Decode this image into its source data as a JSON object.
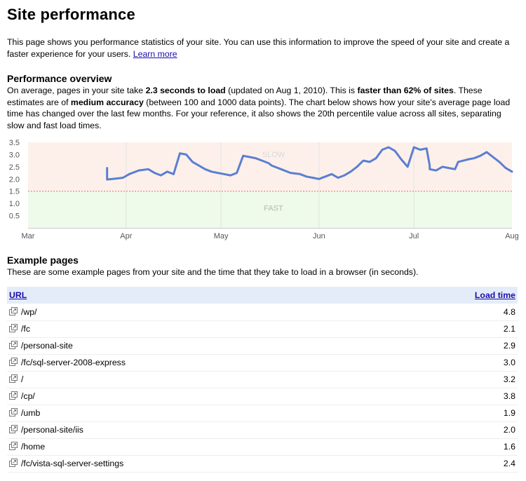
{
  "page_title": "Site performance",
  "intro": {
    "text": "This page shows you performance statistics of your site. You can use this information to improve the speed of your site and create a faster experience for your users. ",
    "learn_more": "Learn more"
  },
  "overview": {
    "heading": "Performance overview",
    "t1": "On average, pages in your site take ",
    "t2": "2.3 seconds to load",
    "t3": " (updated on Aug 1, 2010). This is ",
    "t4": "faster than 62% of sites",
    "t5": ". These estimates are of ",
    "t6": "medium accuracy",
    "t7": " (between 100 and 1000 data points). The chart below shows how your site's average page load time has changed over the last few months. For your reference, it also shows the 20th percentile value across all sites, separating slow and fast load times."
  },
  "colors": {
    "line": "#5b7fd0",
    "slow_band": "#fdf0eb",
    "fast_band": "#eefaea",
    "threshold": "#e07060"
  },
  "chart_data": {
    "type": "line",
    "ylim": [
      0,
      3.5
    ],
    "yticks": [
      0.5,
      1.0,
      1.5,
      2.0,
      2.5,
      3.0,
      3.5
    ],
    "ytick_labels": [
      "0.5",
      "1.0",
      "1.5",
      "2.0",
      "2.5",
      "3.0",
      "3.5"
    ],
    "xticks": [
      "Mar",
      "Apr",
      "May",
      "Jun",
      "Jul",
      "Aug"
    ],
    "threshold": 1.5,
    "band_labels": {
      "slow": "SLOW",
      "fast": "FAST"
    },
    "x_start": "2010-03-01",
    "series": [
      {
        "x": [
          "2010-03-26",
          "2010-03-26",
          "2010-03-29",
          "2010-03-31",
          "2010-04-02",
          "2010-04-05",
          "2010-04-08",
          "2010-04-10",
          "2010-04-12",
          "2010-04-14",
          "2010-04-16",
          "2010-04-18",
          "2010-04-20",
          "2010-04-22",
          "2010-04-24",
          "2010-04-26",
          "2010-04-28",
          "2010-04-30",
          "2010-05-02",
          "2010-05-04",
          "2010-05-06",
          "2010-05-08",
          "2010-05-10",
          "2010-05-12",
          "2010-05-14",
          "2010-05-16",
          "2010-05-17",
          "2010-05-20",
          "2010-05-23",
          "2010-05-26",
          "2010-05-28",
          "2010-05-30",
          "2010-06-01",
          "2010-06-03",
          "2010-06-05",
          "2010-06-07",
          "2010-06-09",
          "2010-06-11",
          "2010-06-13",
          "2010-06-15",
          "2010-06-17",
          "2010-06-19",
          "2010-06-21",
          "2010-06-23",
          "2010-06-25",
          "2010-06-27",
          "2010-06-29",
          "2010-07-01",
          "2010-07-03",
          "2010-07-05",
          "2010-07-06",
          "2010-07-06",
          "2010-07-08",
          "2010-07-10",
          "2010-07-12",
          "2010-07-14",
          "2010-07-15",
          "2010-07-18",
          "2010-07-20",
          "2010-07-22",
          "2010-07-24",
          "2010-07-26",
          "2010-07-28",
          "2010-07-30",
          "2010-08-01"
        ],
        "y": [
          2.45,
          1.98,
          2.02,
          2.05,
          2.2,
          2.35,
          2.4,
          2.25,
          2.15,
          2.3,
          2.2,
          3.05,
          3.0,
          2.7,
          2.55,
          2.4,
          2.3,
          2.25,
          2.2,
          2.15,
          2.25,
          2.95,
          2.9,
          2.85,
          2.75,
          2.65,
          2.55,
          2.4,
          2.25,
          2.2,
          2.1,
          2.05,
          2.0,
          2.1,
          2.2,
          2.05,
          2.15,
          2.3,
          2.5,
          2.75,
          2.7,
          2.85,
          3.2,
          3.3,
          3.15,
          2.8,
          2.5,
          3.3,
          3.2,
          3.25,
          2.55,
          2.4,
          2.35,
          2.5,
          2.45,
          2.4,
          2.7,
          2.8,
          2.85,
          2.95,
          3.1,
          2.9,
          2.7,
          2.45,
          2.3
        ]
      }
    ]
  },
  "examples": {
    "heading": "Example pages",
    "desc": "These are some example pages from your site and the time that they take to load in a browser (in seconds).",
    "col_url": "URL",
    "col_load": "Load time",
    "rows": [
      {
        "url": "/wp/",
        "load": "4.8"
      },
      {
        "url": "/fc",
        "load": "2.1"
      },
      {
        "url": "/personal-site",
        "load": "2.9"
      },
      {
        "url": "/fc/sql-server-2008-express",
        "load": "3.0"
      },
      {
        "url": "/",
        "load": "3.2"
      },
      {
        "url": "/cp/",
        "load": "3.8"
      },
      {
        "url": "/umb",
        "load": "1.9"
      },
      {
        "url": "/personal-site/iis",
        "load": "2.0"
      },
      {
        "url": "/home",
        "load": "1.6"
      },
      {
        "url": "/fc/vista-sql-server-settings",
        "load": "2.4"
      }
    ],
    "row_icon": "external-link-icon"
  }
}
